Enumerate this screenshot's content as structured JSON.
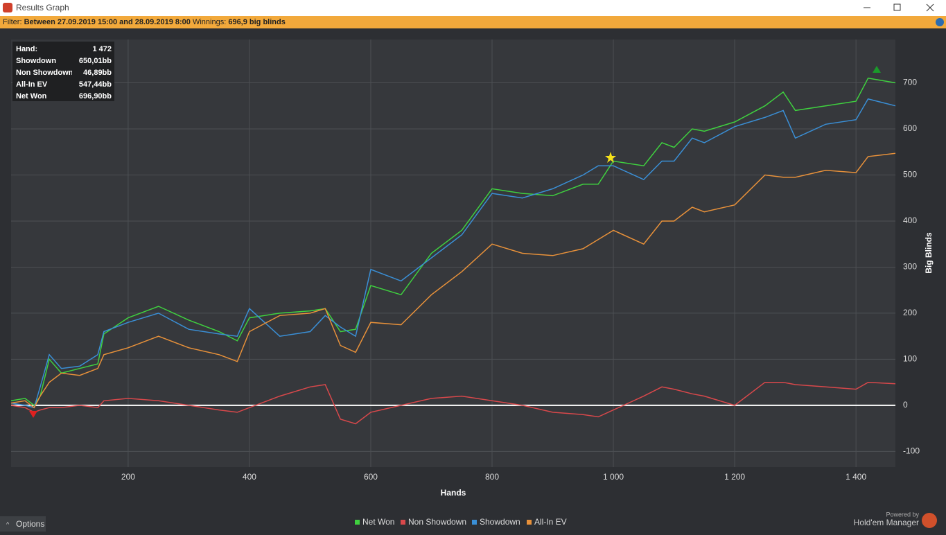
{
  "window": {
    "title": "Results Graph"
  },
  "filter": {
    "label": "Filter:",
    "range": "Between 27.09.2019 15:00 and 28.09.2019 8:00",
    "winnings_label": "Winnings:",
    "winnings": "696,9 big blinds"
  },
  "tooltip": {
    "rows": [
      [
        "Hand:",
        "1 472"
      ],
      [
        "Showdown",
        "650,01bb"
      ],
      [
        "Non Showdown",
        "46,89bb"
      ],
      [
        "All-In EV",
        "547,44bb"
      ],
      [
        "Net Won",
        "696,90bb"
      ]
    ]
  },
  "footer": {
    "options": "Options",
    "powered_by": "Powered by",
    "brand": "Hold'em Manager"
  },
  "chart_data": {
    "type": "line",
    "x_label": "Hands",
    "y_label": "Big Blinds",
    "x": [
      7,
      30,
      45,
      55,
      70,
      90,
      120,
      150,
      160,
      200,
      250,
      300,
      350,
      380,
      400,
      450,
      500,
      525,
      550,
      575,
      600,
      650,
      700,
      750,
      800,
      850,
      900,
      950,
      975,
      1000,
      1050,
      1080,
      1100,
      1130,
      1150,
      1200,
      1250,
      1280,
      1300,
      1350,
      1400,
      1420,
      1465
    ],
    "series": [
      {
        "name": "Net Won",
        "color": "#3fd13f",
        "values": [
          10,
          15,
          0,
          20,
          100,
          70,
          80,
          90,
          155,
          190,
          215,
          185,
          160,
          140,
          190,
          200,
          205,
          210,
          160,
          165,
          260,
          240,
          330,
          380,
          470,
          460,
          455,
          480,
          480,
          530,
          520,
          570,
          560,
          600,
          595,
          615,
          650,
          680,
          640,
          650,
          660,
          710,
          700
        ]
      },
      {
        "name": "Non Showdown",
        "color": "#d9484b",
        "values": [
          0,
          -5,
          -15,
          -10,
          -5,
          -5,
          0,
          -5,
          10,
          15,
          10,
          0,
          -10,
          -15,
          -5,
          20,
          40,
          45,
          -30,
          -40,
          -15,
          0,
          15,
          20,
          10,
          0,
          -15,
          -20,
          -25,
          -10,
          20,
          40,
          35,
          25,
          20,
          0,
          50,
          50,
          45,
          40,
          35,
          50,
          47
        ]
      },
      {
        "name": "Showdown",
        "color": "#3a8fd6",
        "values": [
          5,
          0,
          -5,
          40,
          110,
          80,
          85,
          110,
          160,
          180,
          200,
          165,
          155,
          150,
          210,
          150,
          160,
          195,
          170,
          150,
          295,
          270,
          320,
          370,
          460,
          450,
          470,
          500,
          520,
          520,
          490,
          530,
          530,
          580,
          570,
          605,
          625,
          640,
          580,
          610,
          620,
          665,
          650
        ]
      },
      {
        "name": "All-In EV",
        "color": "#e8913a",
        "values": [
          5,
          10,
          -5,
          20,
          50,
          70,
          65,
          80,
          110,
          125,
          150,
          125,
          110,
          95,
          160,
          195,
          200,
          210,
          130,
          115,
          180,
          175,
          240,
          290,
          350,
          330,
          325,
          340,
          360,
          380,
          350,
          400,
          400,
          430,
          420,
          435,
          500,
          495,
          495,
          510,
          505,
          540,
          547
        ]
      }
    ],
    "xlim": [
      7,
      1465
    ],
    "ylim": [
      -134,
      794
    ],
    "xticks": [
      200,
      400,
      600,
      800,
      {
        "value": 1000,
        "label": "1 000"
      },
      {
        "value": 1200,
        "label": "1 200"
      },
      {
        "value": 1400,
        "label": "1 400"
      }
    ],
    "yticks": [
      -100,
      0,
      100,
      200,
      300,
      400,
      500,
      600,
      700
    ],
    "grid": true
  }
}
